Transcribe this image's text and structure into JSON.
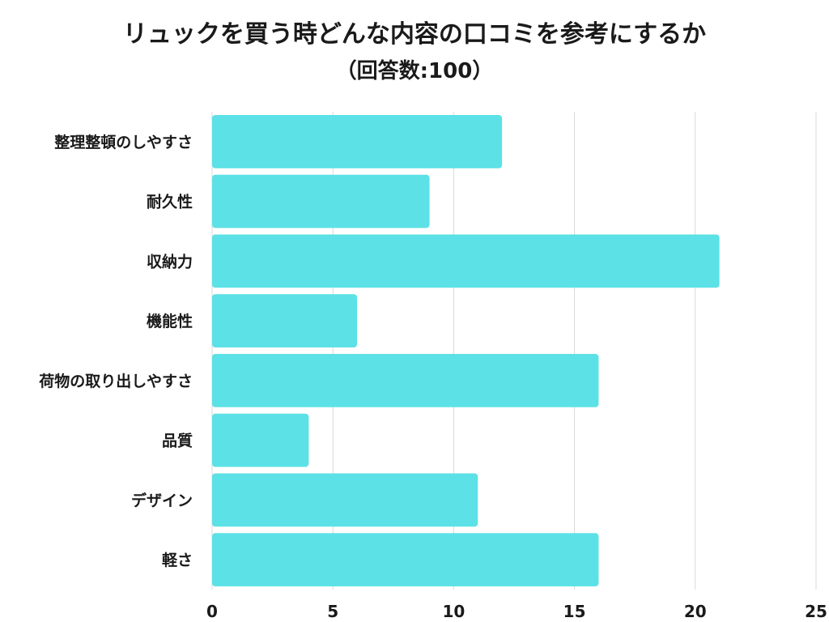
{
  "chart_data": {
    "type": "bar",
    "orientation": "horizontal",
    "title": "リュックを買う時どんな内容の口コミを参考にするか",
    "subtitle": "（回答数:100）",
    "categories": [
      "整理整頓のしやすさ",
      "耐久性",
      "収納力",
      "機能性",
      "荷物の取り出しやすさ",
      "品質",
      "デザイン",
      "軽さ"
    ],
    "values": [
      12,
      9,
      21,
      6,
      16,
      4,
      11,
      16
    ],
    "xlim": [
      0,
      25
    ],
    "xticks": [
      "0",
      "5",
      "10",
      "15",
      "20",
      "25"
    ],
    "xlabel": "",
    "ylabel": "",
    "grid": "vertical",
    "legend": "none",
    "bar_color": "#5ce1e6"
  }
}
